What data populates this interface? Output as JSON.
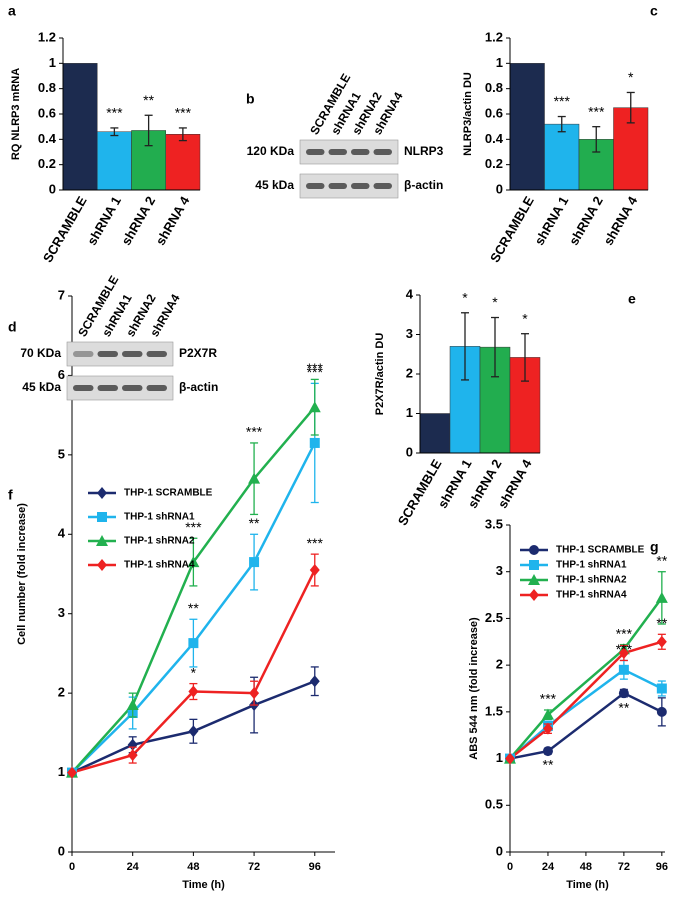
{
  "chart_data": [
    {
      "type": "bar",
      "panel": "a",
      "y_label": "RQ NLRP3 mRNA",
      "categories": [
        "SCRAMBLE",
        "shRNA 1",
        "shRNA 2",
        "shRNA 4"
      ],
      "values": [
        1,
        0.46,
        0.47,
        0.44
      ],
      "errors": [
        null,
        0.03,
        0.12,
        0.05
      ],
      "annotations": [
        null,
        "***",
        "**",
        "***"
      ],
      "colors": [
        "#1c2b4f",
        "#1fb4ec",
        "#22ad4f",
        "#ee2222"
      ],
      "ylim": [
        0,
        1.2
      ],
      "yticks": [
        0,
        0.2,
        0.4,
        0.6,
        0.8,
        1,
        1.2
      ]
    },
    {
      "type": "bar",
      "panel": "c",
      "y_label": "NLRP3/actin DU",
      "categories": [
        "SCRAMBLE",
        "shRNA 1",
        "shRNA 2",
        "shRNA 4"
      ],
      "values": [
        1,
        0.52,
        0.4,
        0.65
      ],
      "errors": [
        null,
        0.06,
        0.1,
        0.12
      ],
      "annotations": [
        null,
        "***",
        "***",
        "*"
      ],
      "colors": [
        "#1c2b4f",
        "#1fb4ec",
        "#22ad4f",
        "#ee2222"
      ],
      "ylim": [
        0,
        1.2
      ],
      "yticks": [
        0,
        0.2,
        0.4,
        0.6,
        0.8,
        1,
        1.2
      ]
    },
    {
      "type": "bar",
      "panel": "e",
      "y_label": "P2X7R/actin DU",
      "categories": [
        "SCRAMBLE",
        "shRNA 1",
        "shRNA 2",
        "shRNA 4"
      ],
      "values": [
        1,
        2.7,
        2.68,
        2.42
      ],
      "errors": [
        null,
        0.85,
        0.75,
        0.6
      ],
      "annotations": [
        null,
        "*",
        "*",
        "*"
      ],
      "colors": [
        "#1c2b4f",
        "#1fb4ec",
        "#22ad4f",
        "#ee2222"
      ],
      "ylim": [
        0,
        4
      ],
      "yticks": [
        0,
        1,
        2,
        3,
        4
      ]
    },
    {
      "type": "line",
      "panel": "f",
      "x_label": "Time  (h)",
      "y_label": "Cell number (fold increase)",
      "x": [
        0,
        24,
        48,
        72,
        96
      ],
      "xlim": [
        0,
        104
      ],
      "xticks": [
        0,
        24,
        48,
        72,
        96
      ],
      "ylim": [
        0,
        7
      ],
      "yticks": [
        0,
        1,
        2,
        3,
        4,
        5,
        6,
        7
      ],
      "legend": "upper left",
      "series": [
        {
          "name": "THP-1 SCRAMBLE",
          "color": "#1c2b6f",
          "marker": "diamond",
          "values": [
            1,
            1.35,
            1.52,
            1.85,
            2.15
          ],
          "errors": [
            null,
            0.1,
            0.15,
            0.35,
            0.18
          ],
          "annotations": [
            null,
            null,
            null,
            null,
            null
          ]
        },
        {
          "name": "THP-1 shRNA1",
          "color": "#1fb4ec",
          "marker": "square",
          "values": [
            1,
            1.75,
            2.63,
            3.65,
            5.15
          ],
          "errors": [
            null,
            0.2,
            0.3,
            0.35,
            0.75
          ],
          "annotations": [
            null,
            null,
            "**",
            "**",
            "***"
          ]
        },
        {
          "name": "THP-1 shRNA2",
          "color": "#22b04f",
          "marker": "triangle",
          "values": [
            1,
            1.85,
            3.65,
            4.7,
            5.6
          ],
          "errors": [
            null,
            0.15,
            0.3,
            0.45,
            0.35
          ],
          "annotations": [
            null,
            null,
            "***",
            "***",
            "***"
          ]
        },
        {
          "name": "THP-1 shRNA4",
          "color": "#ee2222",
          "marker": "diamond",
          "values": [
            1,
            1.22,
            2.02,
            2.0,
            3.55
          ],
          "errors": [
            null,
            0.1,
            0.1,
            0.15,
            0.2
          ],
          "annotations": [
            null,
            null,
            "*",
            null,
            "***"
          ]
        }
      ]
    },
    {
      "type": "line",
      "panel": "g",
      "x_label": "Time (h)",
      "y_label": "ABS 544 nm (fold increase)",
      "x": [
        0,
        24,
        72,
        96
      ],
      "xlim": [
        0,
        98
      ],
      "xticks": [
        0,
        24,
        48,
        72,
        96
      ],
      "ylim": [
        0,
        3.5
      ],
      "yticks": [
        0,
        0.5,
        1,
        1.5,
        2,
        2.5,
        3,
        3.5
      ],
      "legend": "upper left",
      "series": [
        {
          "name": "THP-1 SCRAMBLE",
          "color": "#1c2b6f",
          "marker": "circle",
          "values": [
            1,
            1.08,
            1.7,
            1.5
          ],
          "errors": [
            null,
            0.03,
            0.04,
            0.15
          ],
          "annotations": [
            null,
            "**",
            "**",
            null
          ]
        },
        {
          "name": "THP-1 shRNA1",
          "color": "#1fb4ec",
          "marker": "square",
          "values": [
            1,
            1.35,
            1.95,
            1.75
          ],
          "errors": [
            null,
            0.05,
            0.1,
            0.08
          ],
          "annotations": [
            null,
            null,
            "***",
            null
          ]
        },
        {
          "name": "THP-1 shRNA2",
          "color": "#22b04f",
          "marker": "triangle",
          "values": [
            1,
            1.47,
            2.17,
            2.72
          ],
          "errors": [
            null,
            0.05,
            0.05,
            0.28
          ],
          "annotations": [
            null,
            "***",
            "***",
            "**"
          ]
        },
        {
          "name": "THP-1 shRNA4",
          "color": "#ee2222",
          "marker": "diamond",
          "values": [
            1,
            1.32,
            2.13,
            2.25
          ],
          "errors": [
            null,
            0.05,
            0.08,
            0.08
          ],
          "annotations": [
            null,
            null,
            null,
            "**"
          ]
        }
      ]
    }
  ],
  "blots": [
    {
      "panel": "b",
      "lanes": [
        "SCRAMBLE",
        "shRNA1",
        "shRNA2",
        "shRNA4"
      ],
      "rows": [
        {
          "size": "120 KDa",
          "protein": "NLRP3"
        },
        {
          "size": "45 kDa",
          "protein": "β-actin"
        }
      ]
    },
    {
      "panel": "d",
      "lanes": [
        "SCRAMBLE",
        "shRNA1",
        "shRNA2",
        "shRNA4"
      ],
      "rows": [
        {
          "size": "70 KDa",
          "protein": "P2X7R"
        },
        {
          "size": "45 kDa",
          "protein": "β-actin"
        }
      ]
    }
  ]
}
